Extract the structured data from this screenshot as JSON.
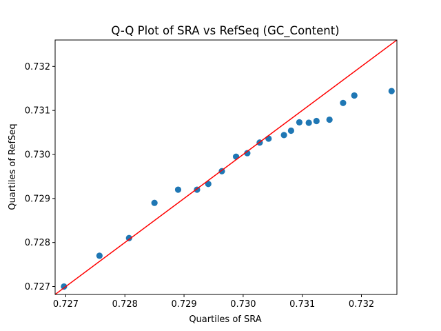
{
  "chart_data": {
    "type": "scatter",
    "title": "Q-Q Plot of SRA vs RefSeq (GC_Content)",
    "xlabel": "Quartiles of SRA",
    "ylabel": "Quartiles of RefSeq",
    "xlim": [
      0.72682,
      0.7326
    ],
    "ylim": [
      0.72682,
      0.7326
    ],
    "xticks": [
      "0.727",
      "0.728",
      "0.729",
      "0.730",
      "0.731",
      "0.732"
    ],
    "yticks": [
      "0.727",
      "0.728",
      "0.729",
      "0.730",
      "0.731",
      "0.732"
    ],
    "grid": false,
    "points": [
      {
        "x": 0.72697,
        "y": 0.727
      },
      {
        "x": 0.72757,
        "y": 0.7277
      },
      {
        "x": 0.72807,
        "y": 0.7281
      },
      {
        "x": 0.7285,
        "y": 0.7289
      },
      {
        "x": 0.7289,
        "y": 0.7292
      },
      {
        "x": 0.72922,
        "y": 0.7292
      },
      {
        "x": 0.72941,
        "y": 0.72933
      },
      {
        "x": 0.72964,
        "y": 0.72962
      },
      {
        "x": 0.72988,
        "y": 0.72995
      },
      {
        "x": 0.73007,
        "y": 0.73003
      },
      {
        "x": 0.73028,
        "y": 0.73027
      },
      {
        "x": 0.73043,
        "y": 0.73036
      },
      {
        "x": 0.73069,
        "y": 0.73044
      },
      {
        "x": 0.73081,
        "y": 0.73054
      },
      {
        "x": 0.73095,
        "y": 0.73073
      },
      {
        "x": 0.73111,
        "y": 0.73072
      },
      {
        "x": 0.73124,
        "y": 0.73076
      },
      {
        "x": 0.73146,
        "y": 0.73079
      },
      {
        "x": 0.73169,
        "y": 0.73117
      },
      {
        "x": 0.73188,
        "y": 0.73134
      },
      {
        "x": 0.73251,
        "y": 0.73144
      }
    ],
    "reference_line": {
      "type": "y=x",
      "color": "#ff0000"
    },
    "marker_color": "#1f77b4"
  }
}
